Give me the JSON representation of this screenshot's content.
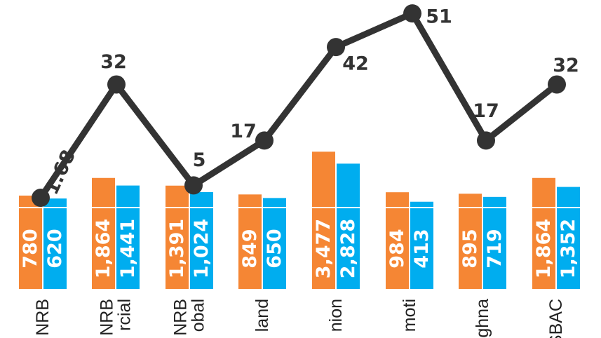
{
  "chart_data": {
    "type": "bar",
    "categories": [
      "NRB",
      "NRB\nrcial",
      "NRB\nobal",
      "land",
      "nion",
      "moti",
      "ghna",
      "SBAC"
    ],
    "series": [
      {
        "values": [
          780,
          1864,
          1391,
          849,
          3477,
          984,
          895,
          1864
        ],
        "labels": [
          "780",
          "1,864",
          "1,391",
          "849",
          "3,477",
          "984",
          "895",
          "1,864"
        ],
        "color": "#f58634"
      },
      {
        "values": [
          620,
          1441,
          1024,
          650,
          2828,
          413,
          719,
          1352
        ],
        "labels": [
          "620",
          "1,441",
          "1,024",
          "650",
          "2,828",
          "413",
          "719",
          "1,352"
        ],
        "color": "#00adef"
      }
    ],
    "line": {
      "values": [
        1.68,
        32,
        5,
        17,
        42,
        51,
        17,
        32
      ],
      "labels": [
        "1.68",
        "32",
        "5",
        "17",
        "42",
        "51",
        "17",
        "32"
      ],
      "color": "#333333"
    },
    "title": "",
    "xlabel": "",
    "ylabel": ""
  }
}
